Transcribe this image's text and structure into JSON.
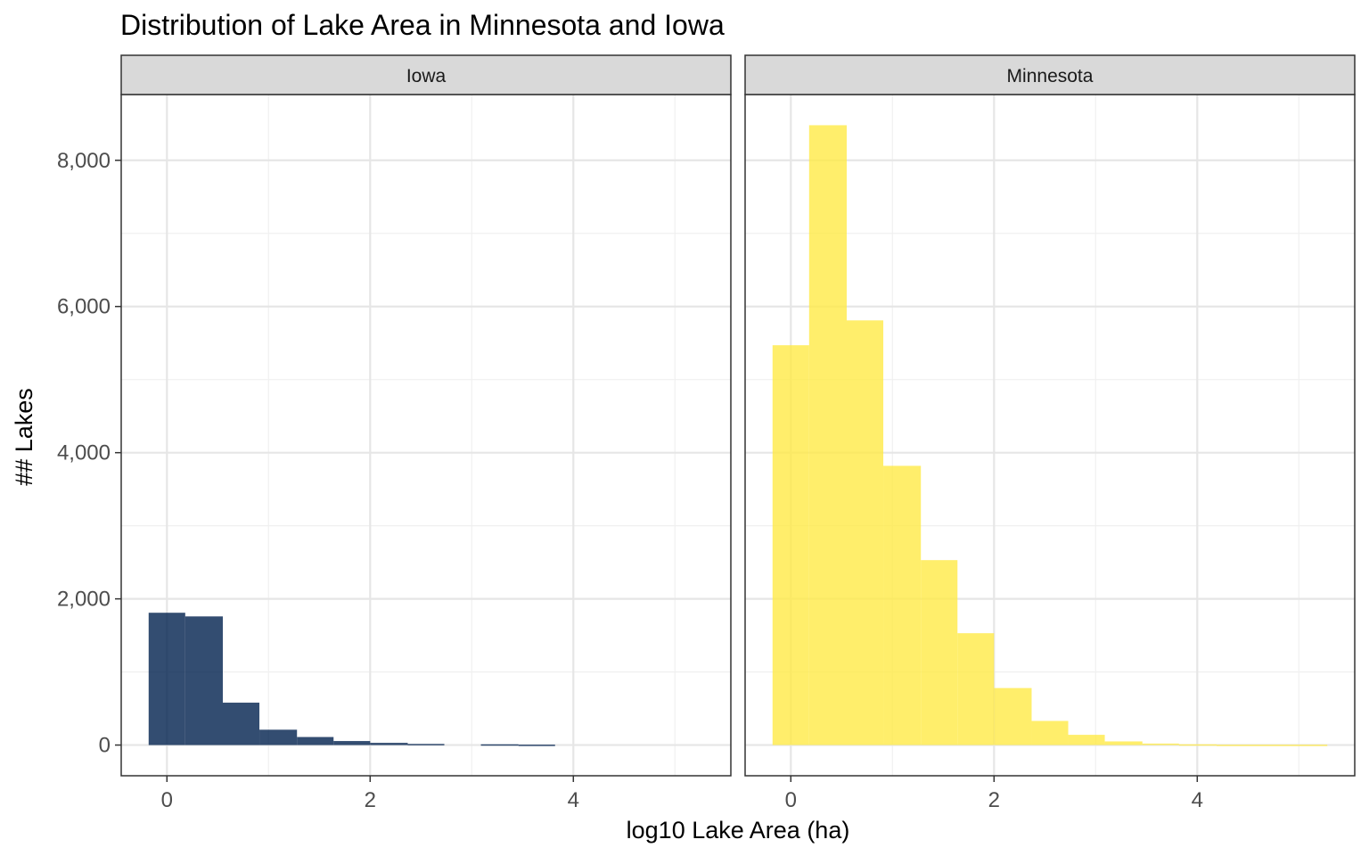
{
  "chart_data": {
    "type": "bar",
    "title": "Distribution of Lake Area in Minnesota and Iowa",
    "xlabel": "log10 Lake Area (ha)",
    "ylabel": "## Lakes",
    "xlim": [
      -0.45,
      5.55
    ],
    "ylim": [
      -420,
      8900
    ],
    "x_ticks": [
      0,
      2,
      4
    ],
    "x_tick_labels": [
      "0",
      "2",
      "4"
    ],
    "y_ticks": [
      0,
      2000,
      4000,
      6000,
      8000
    ],
    "y_tick_labels": [
      "0",
      "2,000",
      "4,000",
      "6,000",
      "8,000"
    ],
    "grid": true,
    "legend": "none",
    "bin_edges": [
      -0.18,
      0.18,
      0.55,
      0.91,
      1.28,
      1.64,
      2.0,
      2.37,
      2.73,
      3.09,
      3.46,
      3.82,
      4.19,
      4.55,
      4.91,
      5.28
    ],
    "panels": [
      {
        "name": "Iowa",
        "color": "#00204D",
        "values": [
          1810,
          1760,
          580,
          210,
          110,
          55,
          30,
          15,
          0,
          10,
          5,
          0,
          0,
          0,
          0
        ]
      },
      {
        "name": "Minnesota",
        "color": "#FFEA46",
        "values": [
          5470,
          8480,
          5810,
          3820,
          2530,
          1530,
          780,
          330,
          140,
          50,
          20,
          10,
          5,
          5,
          5
        ]
      }
    ]
  }
}
